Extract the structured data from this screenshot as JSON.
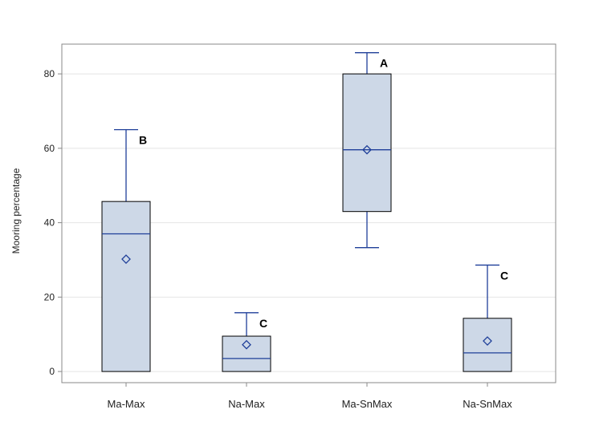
{
  "chart_data": {
    "type": "box",
    "title": "",
    "xlabel": "",
    "ylabel": "Mooring percentage",
    "ylim": [
      -3,
      88
    ],
    "yticks": [
      0,
      20,
      40,
      60,
      80
    ],
    "grid": true,
    "colors": {
      "box_fill": "#cdd8e7",
      "box_stroke": "#000000",
      "median": "#1f3f99",
      "whisker": "#1f3f99",
      "mean_marker": "#1f3f99",
      "gridline": "#e4e4e4",
      "frame": "#888888"
    },
    "categories": [
      "Ma-Max",
      "Na-Max",
      "Ma-SnMax",
      "Na-SnMax"
    ],
    "boxes": [
      {
        "category": "Ma-Max",
        "min": 0,
        "q1": 0,
        "median": 37,
        "q3": 45.7,
        "max": 65,
        "mean": 30.2,
        "group": "B"
      },
      {
        "category": "Na-Max",
        "min": 0,
        "q1": 0,
        "median": 3.5,
        "q3": 9.5,
        "max": 15.8,
        "mean": 7.2,
        "group": "C"
      },
      {
        "category": "Ma-SnMax",
        "min": 33.3,
        "q1": 43,
        "median": 59.6,
        "q3": 80,
        "max": 85.7,
        "mean": 59.6,
        "group": "A"
      },
      {
        "category": "Na-SnMax",
        "min": 0,
        "q1": 0,
        "median": 5,
        "q3": 14.3,
        "max": 28.6,
        "mean": 8.2,
        "group": "C"
      }
    ]
  }
}
